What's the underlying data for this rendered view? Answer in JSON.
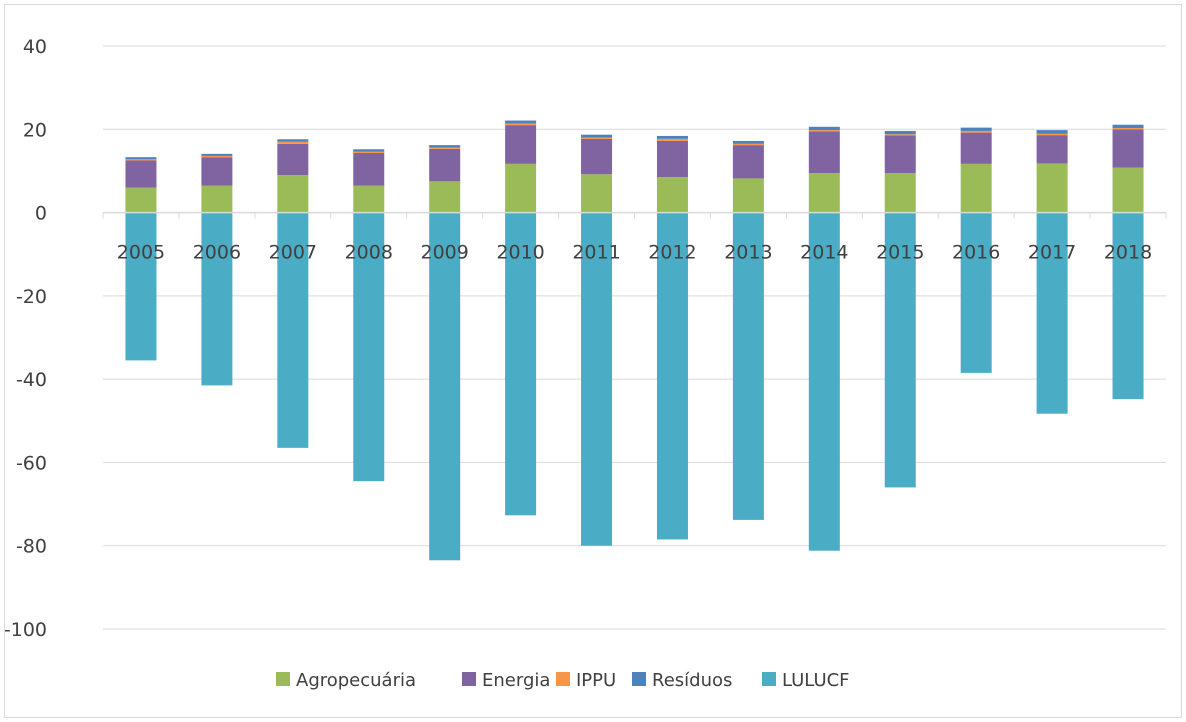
{
  "chart_data": {
    "type": "bar",
    "stacked": true,
    "title": "",
    "xlabel": "",
    "ylabel": "",
    "ylim": [
      -100,
      40
    ],
    "yticks": [
      40,
      20,
      0,
      -20,
      -40,
      -60,
      -80,
      -100
    ],
    "grid": true,
    "legend_position": "bottom",
    "categories": [
      "2005",
      "2006",
      "2007",
      "2008",
      "2009",
      "2010",
      "2011",
      "2012",
      "2013",
      "2014",
      "2015",
      "2016",
      "2017",
      "2018"
    ],
    "series": [
      {
        "name": "Agropecuária",
        "color": "#9bbb59",
        "values": [
          6.0,
          6.5,
          9.0,
          6.5,
          7.5,
          11.7,
          9.2,
          8.5,
          8.2,
          9.5,
          9.5,
          11.7,
          11.8,
          10.8
        ]
      },
      {
        "name": "Energia",
        "color": "#8064a2",
        "values": [
          6.5,
          6.8,
          7.5,
          7.8,
          7.8,
          9.3,
          8.5,
          8.7,
          8.0,
          10.0,
          9.0,
          7.5,
          6.8,
          9.2
        ]
      },
      {
        "name": "IPPU",
        "color": "#f79646",
        "values": [
          0.3,
          0.3,
          0.5,
          0.3,
          0.3,
          0.4,
          0.3,
          0.5,
          0.3,
          0.3,
          0.3,
          0.4,
          0.3,
          0.3
        ]
      },
      {
        "name": "Resíduos",
        "color": "#4f81bd",
        "values": [
          0.5,
          0.5,
          0.6,
          0.6,
          0.6,
          0.7,
          0.7,
          0.7,
          0.7,
          0.8,
          0.8,
          0.8,
          0.9,
          0.8
        ]
      },
      {
        "name": "LULUCF",
        "color": "#4bacc6",
        "values": [
          -35.5,
          -41.5,
          -56.5,
          -64.5,
          -83.5,
          -72.7,
          -80.0,
          -78.5,
          -73.8,
          -81.2,
          -66.0,
          -38.5,
          -48.3,
          -44.8
        ]
      }
    ]
  }
}
